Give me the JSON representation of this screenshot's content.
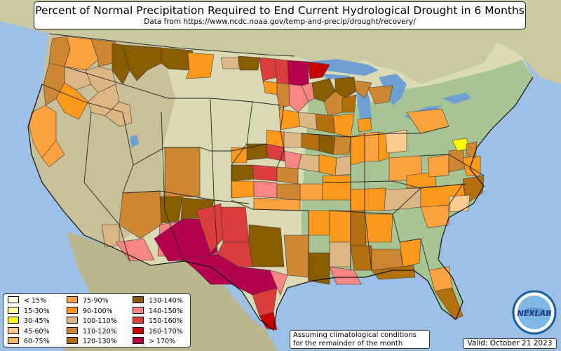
{
  "header": {
    "title": "Percent of Normal Precipitation Required to End Current Hydrological Drought in 6 Months",
    "subtitle": "Data from https://www.ncdc.noaa.gov/temp-and-precip/drought/recovery/"
  },
  "legend": {
    "items": [
      {
        "label": "< 15%",
        "color": "#ffffe0"
      },
      {
        "label": "15-30%",
        "color": "#ffff99"
      },
      {
        "label": "30-45%",
        "color": "#ffff00"
      },
      {
        "label": "45-60%",
        "color": "#fccc8e"
      },
      {
        "label": "60-75%",
        "color": "#fbb868"
      },
      {
        "label": "75-90%",
        "color": "#fca23f"
      },
      {
        "label": "90-100%",
        "color": "#fd9a1b"
      },
      {
        "label": "100-110%",
        "color": "#dcb783"
      },
      {
        "label": "110-120%",
        "color": "#cd8632"
      },
      {
        "label": "120-130%",
        "color": "#b4700e"
      },
      {
        "label": "130-140%",
        "color": "#8a5c00"
      },
      {
        "label": "140-150%",
        "color": "#f88484"
      },
      {
        "label": "150-160%",
        "color": "#dc3c3c"
      },
      {
        "label": "160-170%",
        "color": "#c80000"
      },
      {
        "label": "> 170%",
        "color": "#b5004e"
      }
    ]
  },
  "note": {
    "line1": "Assuming climatological conditions",
    "line2": "for the remainder of the month"
  },
  "valid": "Valid: October 21 2023",
  "logo": {
    "text": "NEXLAB",
    "colors": {
      "ring": "#1a5d9e",
      "globe": "#7fb8e6"
    }
  },
  "colors": {
    "ocean": "#9cc0e6",
    "land_north": "#d9d7b0",
    "land_east": "#8fb98a",
    "land_west": "#c8bf9a",
    "lake": "#6e9fd4"
  }
}
